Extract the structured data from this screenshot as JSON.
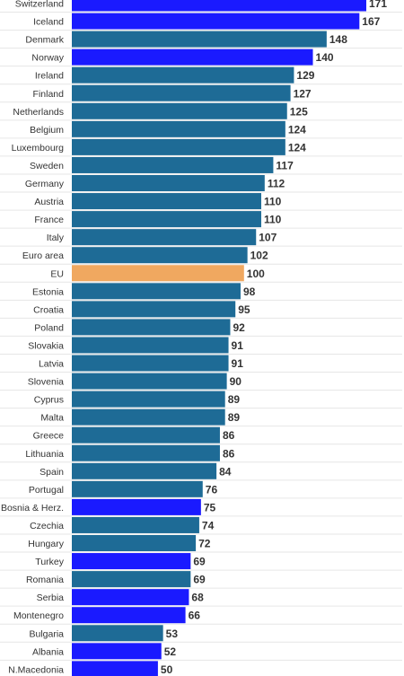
{
  "chart_data": {
    "type": "bar",
    "orientation": "horizontal",
    "categories": [
      "Switzerland",
      "Iceland",
      "Denmark",
      "Norway",
      "Ireland",
      "Finland",
      "Netherlands",
      "Belgium",
      "Luxembourg",
      "Sweden",
      "Germany",
      "Austria",
      "France",
      "Italy",
      "Euro area",
      "EU",
      "Estonia",
      "Croatia",
      "Poland",
      "Slovakia",
      "Latvia",
      "Slovenia",
      "Cyprus",
      "Malta",
      "Greece",
      "Lithuania",
      "Spain",
      "Portugal",
      "Bosnia & Herz.",
      "Czechia",
      "Hungary",
      "Turkey",
      "Romania",
      "Serbia",
      "Montenegro",
      "Bulgaria",
      "Albania",
      "N.Macedonia"
    ],
    "values": [
      171,
      167,
      148,
      140,
      129,
      127,
      125,
      124,
      124,
      117,
      112,
      110,
      110,
      107,
      102,
      100,
      98,
      95,
      92,
      91,
      91,
      90,
      89,
      89,
      86,
      86,
      84,
      76,
      75,
      74,
      72,
      69,
      69,
      68,
      66,
      53,
      52,
      50
    ],
    "bar_colors": [
      "#1a1aff",
      "#1a1aff",
      "#1e6b96",
      "#1a1aff",
      "#1e6b96",
      "#1e6b96",
      "#1e6b96",
      "#1e6b96",
      "#1e6b96",
      "#1e6b96",
      "#1e6b96",
      "#1e6b96",
      "#1e6b96",
      "#1e6b96",
      "#1e6b96",
      "#f0a860",
      "#1e6b96",
      "#1e6b96",
      "#1e6b96",
      "#1e6b96",
      "#1e6b96",
      "#1e6b96",
      "#1e6b96",
      "#1e6b96",
      "#1e6b96",
      "#1e6b96",
      "#1e6b96",
      "#1e6b96",
      "#1a1aff",
      "#1e6b96",
      "#1e6b96",
      "#1a1aff",
      "#1e6b96",
      "#1a1aff",
      "#1a1aff",
      "#1e6b96",
      "#1a1aff",
      "#1a1aff"
    ],
    "xlim": [
      0,
      190
    ],
    "grid": true,
    "legend": "none"
  }
}
